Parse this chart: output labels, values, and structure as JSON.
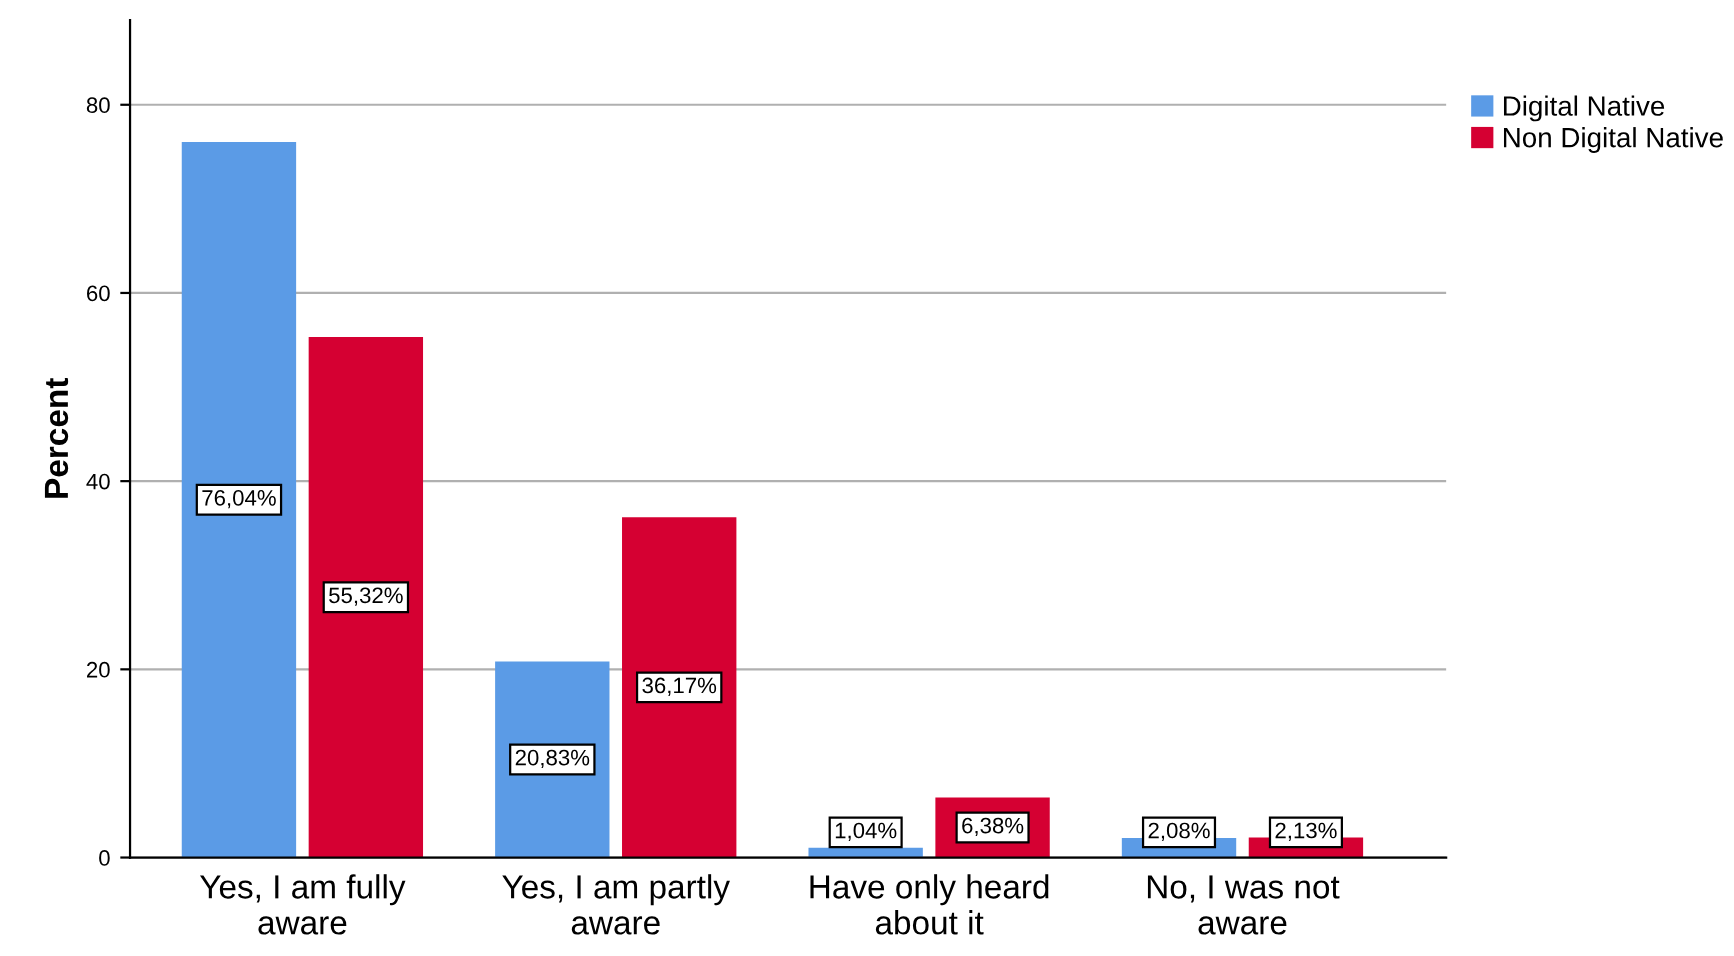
{
  "chart_data": {
    "type": "bar",
    "ylabel": "Percent",
    "categories": [
      "Yes, I am fully\naware",
      "Yes, I am partly\naware",
      "Have only heard\nabout it",
      "No, I was not\naware"
    ],
    "series": [
      {
        "name": "Digital Native",
        "color": "#5b9be6",
        "values": [
          76.04,
          20.83,
          1.04,
          2.08
        ],
        "value_labels": [
          "76,04%",
          "20,83%",
          "1,04%",
          "2,08%"
        ]
      },
      {
        "name": "Non Digital Native",
        "color": "#d50032",
        "values": [
          55.32,
          36.17,
          6.38,
          2.13
        ],
        "value_labels": [
          "55,32%",
          "36,17%",
          "6,38%",
          "2,13%"
        ]
      }
    ],
    "ylim": [
      0,
      89
    ],
    "yticks": [
      0,
      20,
      40,
      60,
      80
    ],
    "grid": "y",
    "legend": "top right"
  }
}
